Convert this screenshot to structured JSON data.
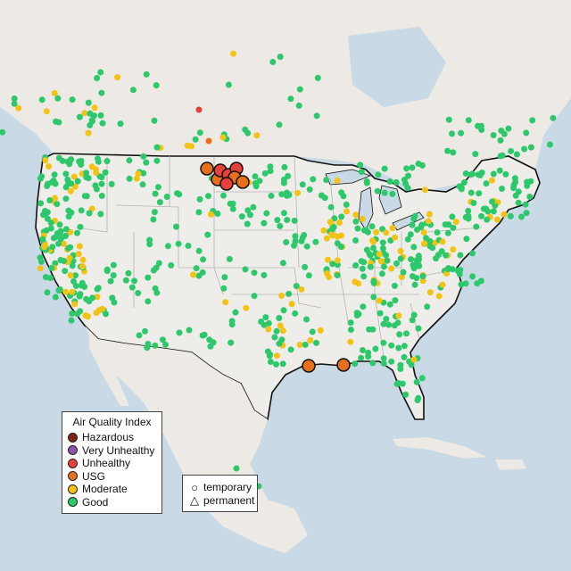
{
  "legend": {
    "title": "Air Quality Index",
    "categories": [
      {
        "label": "Hazardous",
        "color": "#7e2318"
      },
      {
        "label": "Very Unhealthy",
        "color": "#8f52b0"
      },
      {
        "label": "Unhealthy",
        "color": "#e8413b"
      },
      {
        "label": "USG",
        "color": "#e8701c"
      },
      {
        "label": "Moderate",
        "color": "#f2c314"
      },
      {
        "label": "Good",
        "color": "#2ec86c"
      }
    ]
  },
  "shape_legend": {
    "temporary": "temporary",
    "permanent": "permanent"
  },
  "colors": {
    "water": "#c9d9e6",
    "land": "#ede9e4",
    "us_land": "#efedea",
    "border": "#111111",
    "state_line": "#b4b4b4"
  }
}
